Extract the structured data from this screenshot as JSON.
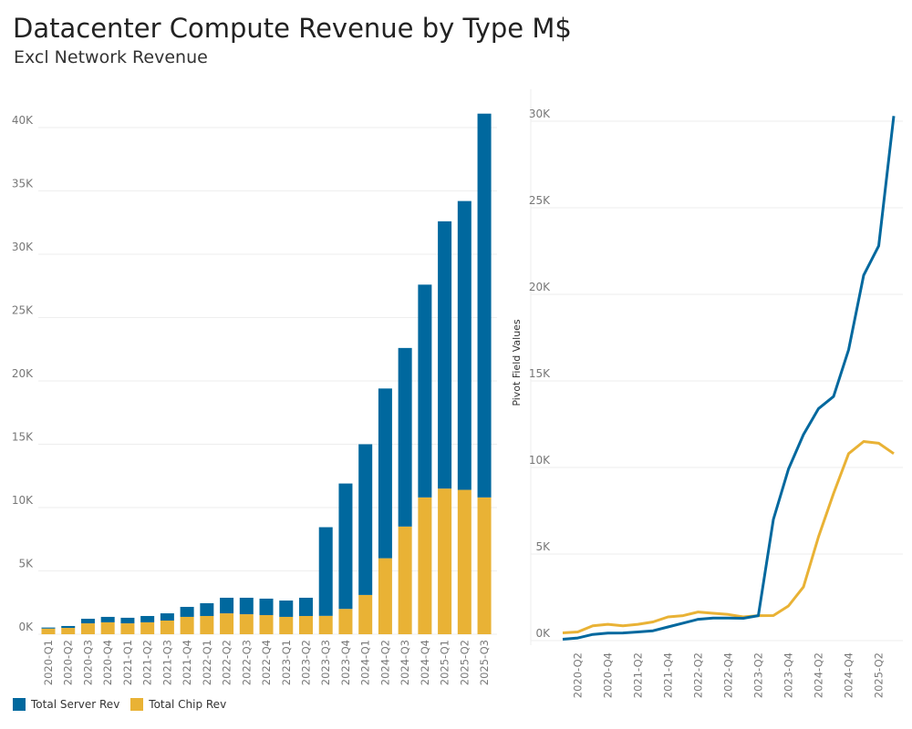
{
  "title": "Datacenter Compute Revenue by Type M$",
  "subtitle": "Excl Network Revenue",
  "colors": {
    "server": "#00689e",
    "chip": "#e9b235",
    "grid": "#eeeeee"
  },
  "legend": [
    {
      "label": "Total Server Rev",
      "color": "#00689e"
    },
    {
      "label": "Total Chip Rev",
      "color": "#e9b235"
    }
  ],
  "chart_data": [
    {
      "type": "bar",
      "stacked": true,
      "title": "",
      "xlabel": "",
      "ylabel": "",
      "ylim": [
        0,
        42
      ],
      "yticks": [
        "0K",
        "5K",
        "10K",
        "15K",
        "20K",
        "25K",
        "30K",
        "35K",
        "40K"
      ],
      "ytick_values": [
        0,
        5,
        10,
        15,
        20,
        25,
        30,
        35,
        40
      ],
      "units": "thousands M$",
      "categories": [
        "2020-Q1",
        "2020-Q2",
        "2020-Q3",
        "2020-Q4",
        "2021-Q1",
        "2021-Q2",
        "2021-Q3",
        "2021-Q4",
        "2022-Q1",
        "2022-Q2",
        "2022-Q3",
        "2022-Q4",
        "2023-Q1",
        "2023-Q2",
        "2023-Q3",
        "2023-Q4",
        "2024-Q1",
        "2024-Q2",
        "2024-Q3",
        "2024-Q4",
        "2025-Q1",
        "2025-Q2",
        "2025-Q3"
      ],
      "series": [
        {
          "name": "Total Chip Rev",
          "values": [
            0.45,
            0.5,
            0.86,
            0.94,
            0.86,
            0.94,
            1.08,
            1.37,
            1.44,
            1.65,
            1.58,
            1.51,
            1.37,
            1.44,
            1.45,
            2.0,
            3.1,
            6.0,
            8.5,
            10.8,
            11.5,
            11.4,
            10.8
          ]
        },
        {
          "name": "Total Server Rev",
          "values": [
            0.08,
            0.15,
            0.36,
            0.43,
            0.44,
            0.5,
            0.57,
            0.79,
            1.01,
            1.23,
            1.3,
            1.3,
            1.29,
            1.44,
            7.0,
            9.9,
            11.9,
            13.4,
            14.1,
            16.8,
            21.1,
            22.8,
            30.3
          ]
        }
      ],
      "legend_position": "bottom-left"
    },
    {
      "type": "line",
      "title": "",
      "xlabel": "",
      "ylabel": "Pivot Field Values",
      "ylim": [
        0,
        31.5
      ],
      "yticks": [
        "0K",
        "5K",
        "10K",
        "15K",
        "20K",
        "25K",
        "30K"
      ],
      "ytick_values": [
        0,
        5,
        10,
        15,
        20,
        25,
        30
      ],
      "xtick_labels": [
        "2020-Q2",
        "2020-Q4",
        "2021-Q2",
        "2021-Q4",
        "2022-Q2",
        "2022-Q4",
        "2023-Q2",
        "2023-Q4",
        "2024-Q2",
        "2024-Q4",
        "2025-Q2"
      ],
      "xtick_indices": [
        1,
        3,
        5,
        7,
        9,
        11,
        13,
        15,
        17,
        19,
        21
      ],
      "series": [
        {
          "name": "Total Server Rev",
          "values": [
            0.08,
            0.15,
            0.36,
            0.43,
            0.44,
            0.5,
            0.57,
            0.79,
            1.01,
            1.23,
            1.3,
            1.3,
            1.29,
            1.44,
            7.0,
            9.9,
            11.9,
            13.4,
            14.1,
            16.8,
            21.1,
            22.8,
            30.3
          ]
        },
        {
          "name": "Total Chip Rev",
          "values": [
            0.45,
            0.5,
            0.86,
            0.94,
            0.86,
            0.94,
            1.08,
            1.37,
            1.44,
            1.65,
            1.58,
            1.51,
            1.37,
            1.44,
            1.45,
            2.0,
            3.1,
            6.0,
            8.5,
            10.8,
            11.5,
            11.4,
            10.8
          ]
        }
      ]
    }
  ]
}
